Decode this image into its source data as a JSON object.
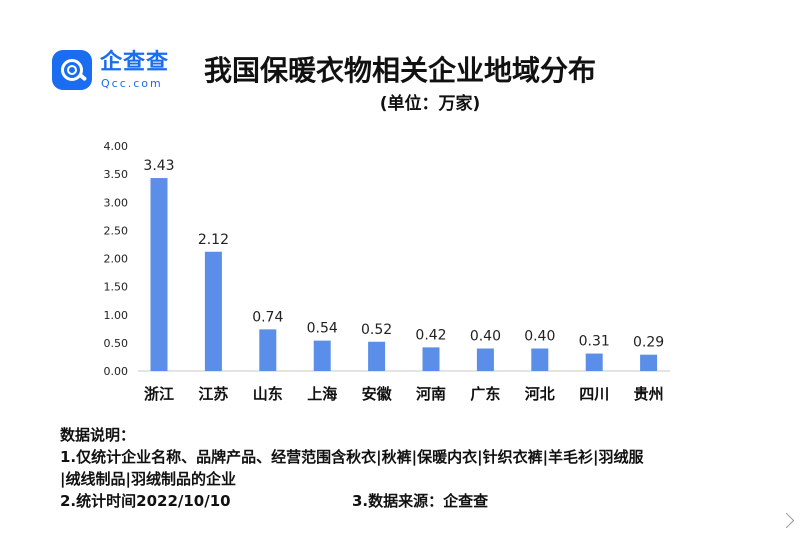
{
  "brand": {
    "name": "企查查",
    "sub": "Qcc.com",
    "color": "#1a6cf0"
  },
  "chart_data": {
    "type": "bar",
    "title": "我国保暖衣物相关企业地域分布",
    "subtitle": "(单位：万家)",
    "categories": [
      "浙江",
      "江苏",
      "山东",
      "上海",
      "安徽",
      "河南",
      "广东",
      "河北",
      "四川",
      "贵州"
    ],
    "values": [
      3.43,
      2.12,
      0.74,
      0.54,
      0.52,
      0.42,
      0.4,
      0.4,
      0.31,
      0.29
    ],
    "value_labels": [
      "3.43",
      "2.12",
      "0.74",
      "0.54",
      "0.52",
      "0.42",
      "0.40",
      "0.40",
      "0.31",
      "0.29"
    ],
    "ylim": [
      0,
      4
    ],
    "yticks": [
      "0.00",
      "0.50",
      "1.00",
      "1.50",
      "2.00",
      "2.50",
      "3.00",
      "3.50",
      "4.00"
    ],
    "ytick_values": [
      0,
      0.5,
      1,
      1.5,
      2,
      2.5,
      3,
      3.5,
      4
    ],
    "grid": false,
    "bar_color": "#5b8ee8"
  },
  "notes": {
    "heading": "数据说明：",
    "line1": "1.仅统计企业名称、品牌产品、经营范围含秋衣|秋裤|保暖内衣|针织衣裤|羊毛衫|羽绒服",
    "line2": "|绒线制品|羽绒制品的企业",
    "line3": "2.统计时间2022/10/10",
    "line4": "3.数据来源：企查查"
  }
}
